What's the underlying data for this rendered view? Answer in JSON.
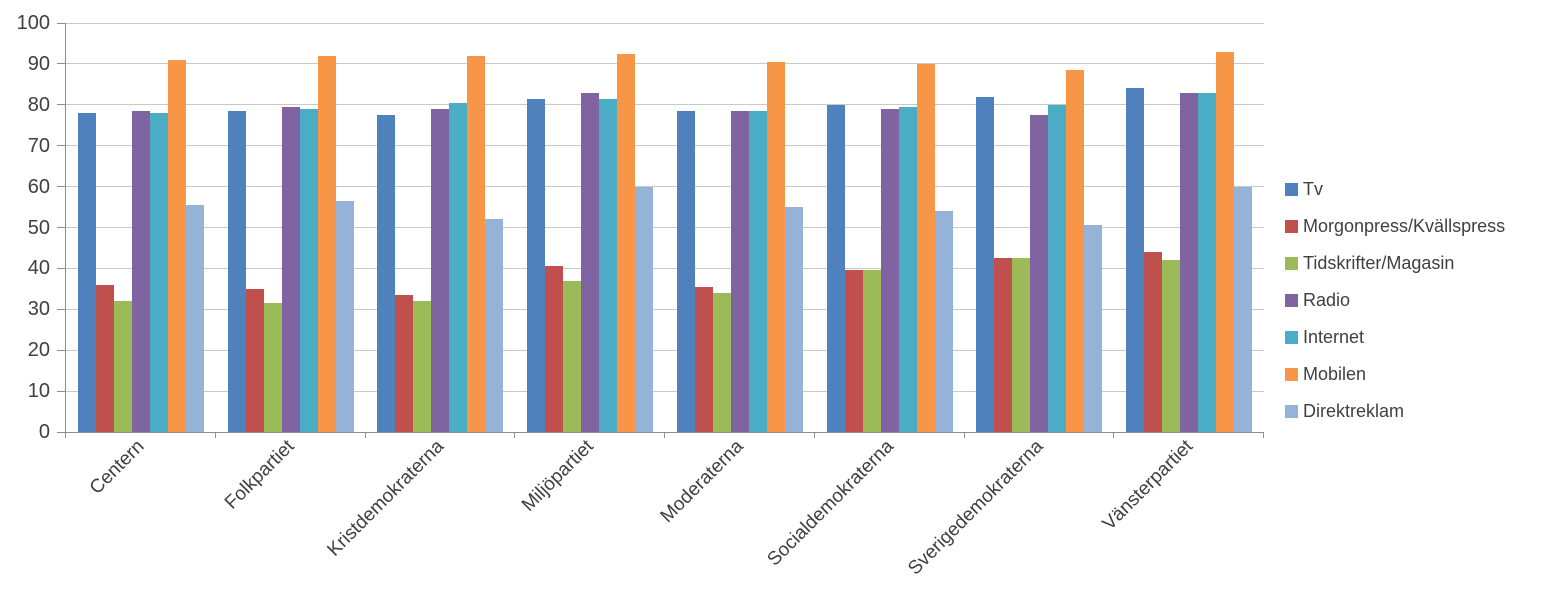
{
  "chart_data": {
    "type": "bar",
    "title": "",
    "xlabel": "",
    "ylabel": "",
    "categories": [
      "Centern",
      "Folkpartiet",
      "Kristdemokraterna",
      "Miljöpartiet",
      "Moderaterna",
      "Socialdemokraterna",
      "Sverigedemokraterna",
      "Vänsterpartiet"
    ],
    "series": [
      {
        "name": "Tv",
        "color": "#4F81BD",
        "values": [
          78,
          78.5,
          77.5,
          81.5,
          78.5,
          80,
          82,
          84
        ]
      },
      {
        "name": "Morgonpress/Kvällspress",
        "color": "#C0504D",
        "values": [
          36,
          35,
          33.5,
          40.5,
          35.5,
          39.5,
          42.5,
          44
        ]
      },
      {
        "name": "Tidskrifter/Magasin",
        "color": "#9BBB59",
        "values": [
          32,
          31.5,
          32,
          37,
          34,
          39.5,
          42.5,
          42
        ]
      },
      {
        "name": "Radio",
        "color": "#8064A2",
        "values": [
          78.5,
          79.5,
          79,
          83,
          78.5,
          79,
          77.5,
          83
        ]
      },
      {
        "name": "Internet",
        "color": "#4BACC6",
        "values": [
          78,
          79,
          80.5,
          81.5,
          78.5,
          79.5,
          80,
          83
        ]
      },
      {
        "name": "Mobilen",
        "color": "#F79646",
        "values": [
          91,
          92,
          92,
          92.5,
          90.5,
          90,
          88.5,
          93
        ]
      },
      {
        "name": "Direktreklam",
        "color": "#95B3D7",
        "values": [
          55.5,
          56.5,
          52,
          60,
          55,
          54,
          50.5,
          60
        ]
      }
    ],
    "ylim": [
      0,
      100
    ],
    "yticks": [
      0,
      10,
      20,
      30,
      40,
      50,
      60,
      70,
      80,
      90,
      100
    ],
    "grid": true,
    "legend_position": "right"
  },
  "colors": {
    "background": "#FFFFFF",
    "gridline": "#C9C9C9",
    "axis": "#8E8E8E",
    "text": "#404040"
  }
}
